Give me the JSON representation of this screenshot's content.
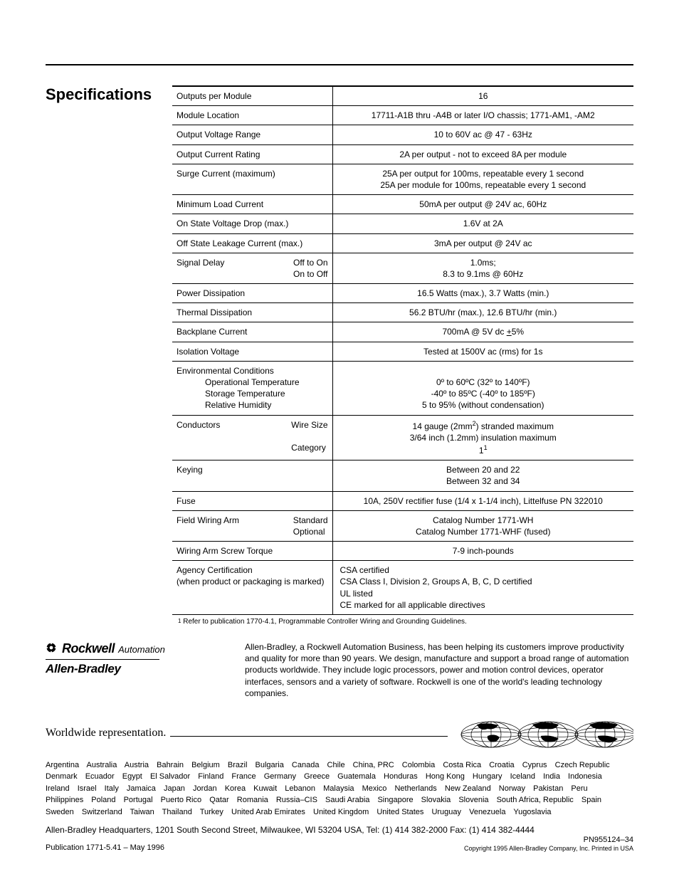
{
  "section_title": "Specifications",
  "table": {
    "rows": [
      {
        "label": "Outputs per Module",
        "value": "16",
        "align": "center"
      },
      {
        "label": "Module Location",
        "value": "17711-A1B thru -A4B or later I/O chassis; 1771-AM1, -AM2",
        "align": "center"
      },
      {
        "label": "Output Voltage Range",
        "value": "10 to 60V ac @ 47 - 63Hz",
        "align": "center"
      },
      {
        "label": "Output Current Rating",
        "value": "2A per output - not to exceed 8A per module",
        "align": "center"
      },
      {
        "label": "Surge Current (maximum)",
        "value": "25A per output for 100ms, repeatable every 1 second\n25A per module for 100ms, repeatable every 1 second",
        "align": "center"
      },
      {
        "label": "Minimum Load Current",
        "value": "50mA per output @ 24V ac, 60Hz",
        "align": "center"
      },
      {
        "label": "On State Voltage Drop (max.)",
        "value": "1.6V at 2A",
        "align": "center"
      },
      {
        "label": "Off State Leakage Current (max.)",
        "value": "3mA per output @ 24V ac",
        "align": "center"
      },
      {
        "label_main": "Signal Delay",
        "label_sub": [
          "Off to On",
          "On to Off"
        ],
        "value": "1.0ms;\n8.3 to 9.1ms @ 60Hz",
        "align": "center"
      },
      {
        "label": "Power Dissipation",
        "value": "16.5 Watts (max.), 3.7 Watts (min.)",
        "align": "center"
      },
      {
        "label": "Thermal Dissipation",
        "value": "56.2 BTU/hr (max.), 12.6 BTU/hr (min.)",
        "align": "center"
      },
      {
        "label": "Backplane Current",
        "value_html": "700mA @ 5V dc <u>+</u>5%",
        "align": "center"
      },
      {
        "label": "Isolation Voltage",
        "value": "Tested at 1500V ac (rms) for 1s",
        "align": "center"
      },
      {
        "label_main": "Environmental Conditions",
        "label_sub_indent": [
          "Operational Temperature",
          "Storage Temperature",
          "Relative Humidity"
        ],
        "value_html": "<br>0º to 60ºC (32º to 140ºF)<br>-40º to 85ºC (-40º to 185ºF)<br>5 to 95% (without condensation)",
        "align": "center"
      },
      {
        "label_main": "Conductors",
        "label_sub": [
          "Wire Size",
          "",
          "Category"
        ],
        "value_html": "14 gauge (2mm<sup class='tiny'>2</sup>) stranded maximum<br>3/64 inch (1.2mm) insulation maximum<br>1<sup class='tiny'>1</sup>",
        "align": "center"
      },
      {
        "label": "Keying",
        "value": "Between 20 and 22\nBetween 32 and 34",
        "align": "center"
      },
      {
        "label": "Fuse",
        "value": "10A, 250V rectifier fuse (1/4 x 1-1/4 inch), Littelfuse PN 322010",
        "align": "center"
      },
      {
        "label_main": "Field Wiring Arm",
        "label_sub": [
          "Standard",
          "Optional"
        ],
        "value": "Catalog Number 1771-WH\nCatalog Number 1771-WHF (fused)",
        "align": "center"
      },
      {
        "label": "Wiring Arm Screw Torque",
        "value": "7-9 inch-pounds",
        "align": "center"
      },
      {
        "label": "Agency Certification\n(when product or packaging is marked)",
        "value": "CSA certified\nCSA Class I, Division 2, Groups A, B, C, D certified\nUL listed\nCE marked for all applicable directives",
        "align": "left"
      }
    ]
  },
  "footnote": "Refer to publication 1770-4.1, Programmable Controller Wiring and Grounding Guidelines.",
  "footnote_num": "1",
  "company_logo": {
    "line1a": "Rockwell",
    "line1b": "Automation",
    "line2": "Allen-Bradley"
  },
  "company_desc": "Allen-Bradley, a Rockwell Automation Business, has been helping its customers improve productivity and quality for more than 90 years. We design, manufacture and support a broad range of automation products worldwide. They include logic processors, power and motion control devices, operator interfaces, sensors and a variety of software. Rockwell is one of the world's leading technology companies.",
  "worldwide_label": "Worldwide representation.",
  "countries": [
    "Argentina",
    "Australia",
    "Austria",
    "Bahrain",
    "Belgium",
    "Brazil",
    "Bulgaria",
    "Canada",
    "Chile",
    "China, PRC",
    "Colombia",
    "Costa Rica",
    "Croatia",
    "Cyprus",
    "Czech Republic",
    "Denmark",
    "Ecuador",
    "Egypt",
    "El Salvador",
    "Finland",
    "France",
    "Germany",
    "Greece",
    "Guatemala",
    "Honduras",
    "Hong Kong",
    "Hungary",
    "Iceland",
    "India",
    "Indonesia",
    "Ireland",
    "Israel",
    "Italy",
    "Jamaica",
    "Japan",
    "Jordan",
    "Korea",
    "Kuwait",
    "Lebanon",
    "Malaysia",
    "Mexico",
    "Netherlands",
    "New Zealand",
    "Norway",
    "Pakistan",
    "Peru",
    "Philippines",
    "Poland",
    "Portugal",
    "Puerto Rico",
    "Qatar",
    "Romania",
    "Russia–CIS",
    "Saudi Arabia",
    "Singapore",
    "Slovakia",
    "Slovenia",
    "South Africa, Republic",
    "Spain",
    "Sweden",
    "Switzerland",
    "Taiwan",
    "Thailand",
    "Turkey",
    "United Arab Emirates",
    "United Kingdom",
    "United States",
    "Uruguay",
    "Venezuela",
    "Yugoslavia"
  ],
  "hq": "Allen-Bradley Headquarters, 1201 South Second Street, Milwaukee, WI 53204 USA, Tel: (1) 414 382-2000 Fax: (1) 414 382-4444",
  "footer_left": "Publication 1771-5.41 – May 1996",
  "footer_right": "PN955124–34",
  "footer_copy": "Copyright 1995 Allen-Bradley Company, Inc.   Printed in USA"
}
